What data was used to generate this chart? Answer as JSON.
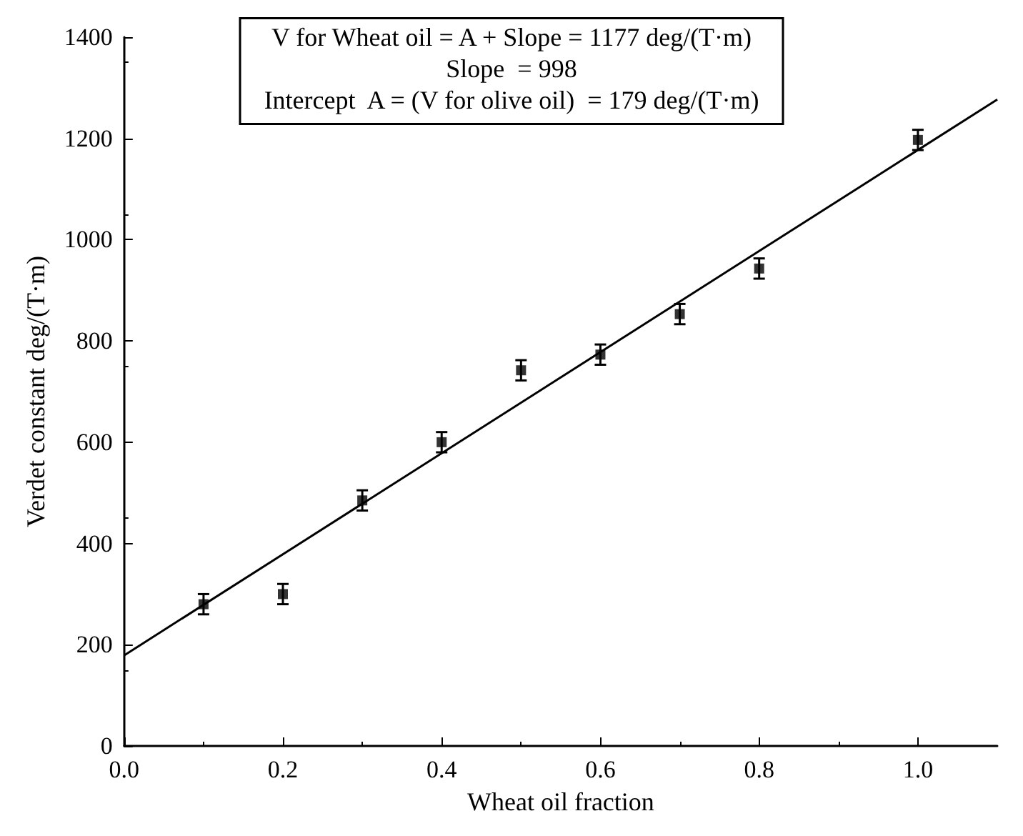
{
  "chart_data": {
    "type": "scatter",
    "xlabel": "Wheat oil fraction",
    "ylabel": "Verdet constant deg/(T·m)",
    "annotations": [
      "V for Wheat oil = A + Slope = 1177 deg/(T·m)",
      "Slope  = 998",
      "Intercept  A = (V for olive oil)  = 179 deg/(T·m)"
    ],
    "series": [
      {
        "color": "#000000",
        "x": [
          0.1,
          0.2,
          0.3,
          0.4,
          0.5,
          0.6,
          0.7,
          0.8,
          1.0
        ],
        "values": [
          280,
          300,
          485,
          600,
          742,
          773,
          853,
          943,
          1197
        ],
        "errors": [
          20,
          20,
          20,
          20,
          20,
          20,
          20,
          20,
          20
        ],
        "marker": "square"
      },
      {
        "type": "line",
        "color": "#000000",
        "x": [
          0,
          1.1
        ],
        "values": [
          179,
          1277
        ],
        "line_style": "solid"
      }
    ],
    "xlim": [
      0,
      1.1
    ],
    "xticks": [
      {
        "value": 0,
        "label": "0.0"
      },
      0.2,
      0.4,
      0.6,
      0.8,
      {
        "value": 1,
        "label": "1.0"
      }
    ],
    "ylim": [
      0,
      1400
    ],
    "yticks": [
      0,
      200,
      400,
      600,
      800,
      1000,
      1200,
      1400
    ],
    "grid": false
  }
}
